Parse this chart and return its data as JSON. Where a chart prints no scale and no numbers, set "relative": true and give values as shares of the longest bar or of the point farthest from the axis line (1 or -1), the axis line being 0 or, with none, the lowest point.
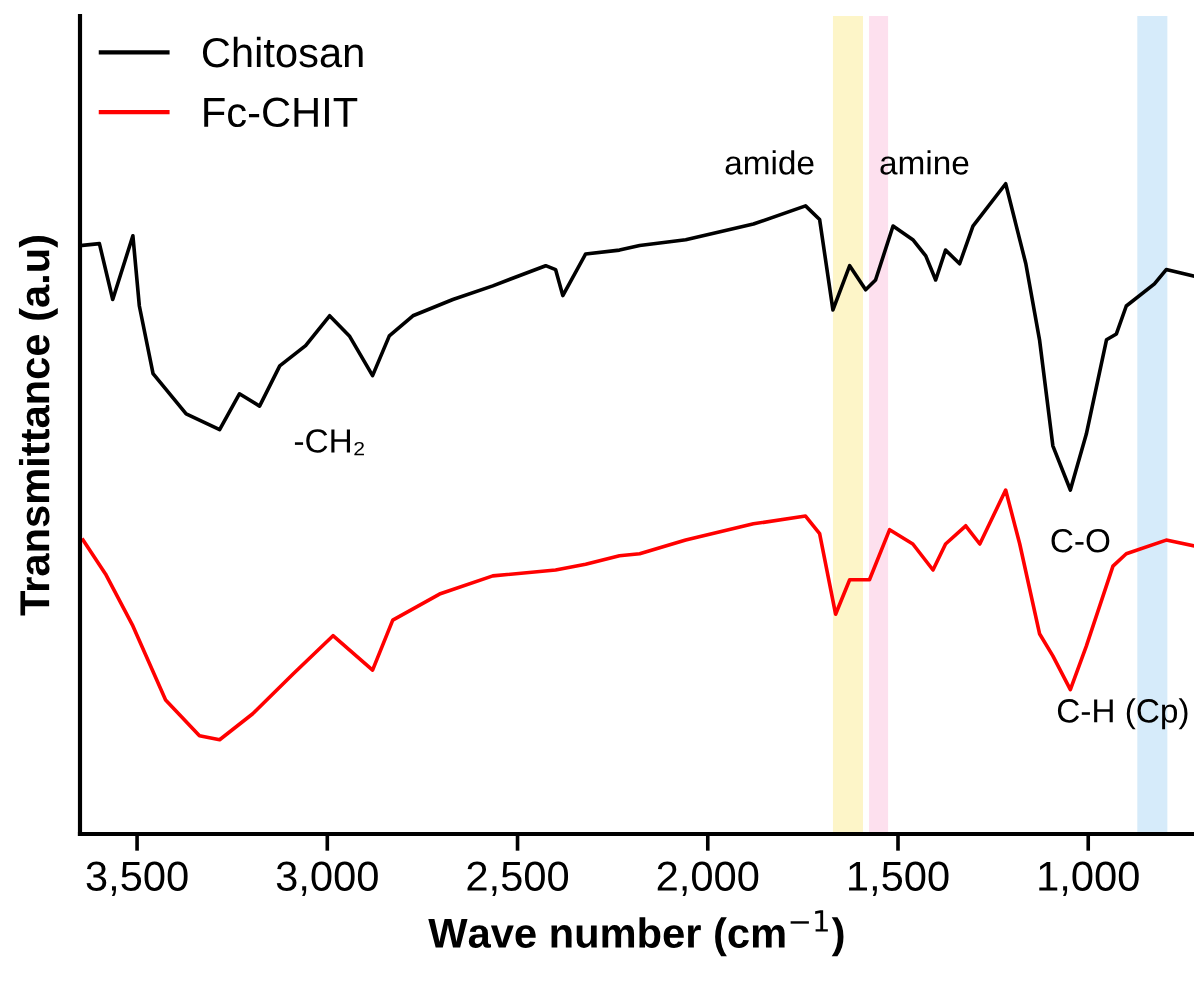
{
  "chart_data": {
    "type": "line",
    "relative": true,
    "xlabel": "Wave number (cm$^{−1}$)",
    "ylabel": "Transmittance (a.u)",
    "xlim": [
      3650,
      722
    ],
    "xticks": [
      {
        "value": 3500,
        "label": "3,500"
      },
      {
        "value": 3000,
        "label": "3,000"
      },
      {
        "value": 2500,
        "label": "2,500"
      },
      {
        "value": 2000,
        "label": "2,000"
      },
      {
        "value": 1500,
        "label": "1,500"
      },
      {
        "value": 1000,
        "label": "1,000"
      }
    ],
    "tick_labels": "x",
    "grid": false,
    "legend": "top left",
    "marker": "none",
    "line_style": "solid",
    "series": [
      {
        "name": "Chitosan",
        "color": "#000000",
        "x": [
          3649,
          3599,
          3564,
          3511,
          3494,
          3458,
          3371,
          3283,
          3231,
          3178,
          3125,
          3057,
          2994,
          2942,
          2881,
          2837,
          2775,
          2670,
          2565,
          2426,
          2400,
          2381,
          2321,
          2232,
          2179,
          2058,
          1880,
          1743,
          1706,
          1671,
          1627,
          1585,
          1559,
          1513,
          1461,
          1427,
          1401,
          1375,
          1338,
          1303,
          1217,
          1180,
          1164,
          1128,
          1093,
          1047,
          1005,
          952,
          926,
          900,
          826,
          795,
          722
        ],
        "values": [
          0.905,
          0.908,
          0.822,
          0.92,
          0.812,
          0.708,
          0.646,
          0.622,
          0.677,
          0.658,
          0.72,
          0.751,
          0.797,
          0.766,
          0.705,
          0.766,
          0.797,
          0.822,
          0.843,
          0.874,
          0.868,
          0.828,
          0.892,
          0.898,
          0.905,
          0.914,
          0.938,
          0.966,
          0.945,
          0.806,
          0.874,
          0.837,
          0.852,
          0.935,
          0.914,
          0.889,
          0.852,
          0.898,
          0.877,
          0.935,
          1.0,
          0.914,
          0.877,
          0.76,
          0.597,
          0.529,
          0.615,
          0.76,
          0.769,
          0.812,
          0.846,
          0.868,
          0.858
        ]
      },
      {
        "name": "Fc-CHIT",
        "color": "#ff0000",
        "x": [
          3642,
          3583,
          3511,
          3425,
          3336,
          3283,
          3196,
          3090,
          2985,
          2881,
          2828,
          2705,
          2565,
          2400,
          2321,
          2232,
          2179,
          2058,
          1880,
          1743,
          1706,
          1664,
          1627,
          1575,
          1522,
          1461,
          1408,
          1375,
          1322,
          1285,
          1217,
          1180,
          1128,
          1093,
          1047,
          1005,
          935,
          900,
          795,
          722
        ],
        "values": [
          0.452,
          0.4,
          0.32,
          0.206,
          0.151,
          0.145,
          0.185,
          0.246,
          0.305,
          0.252,
          0.329,
          0.369,
          0.397,
          0.406,
          0.415,
          0.428,
          0.431,
          0.452,
          0.477,
          0.489,
          0.462,
          0.338,
          0.391,
          0.391,
          0.468,
          0.446,
          0.406,
          0.446,
          0.474,
          0.446,
          0.529,
          0.446,
          0.308,
          0.274,
          0.222,
          0.289,
          0.412,
          0.431,
          0.452,
          0.443
        ]
      }
    ],
    "bands": [
      {
        "axis": "x",
        "from": 1671,
        "to": 1592,
        "color": "#fdf5c8"
      },
      {
        "axis": "x",
        "from": 1576,
        "to": 1526,
        "color": "#fde0ee"
      },
      {
        "axis": "x",
        "from": 871,
        "to": 792,
        "color": "#d6ebfa"
      }
    ],
    "annotations": [
      "amide",
      "amine",
      "-CH₂",
      "C-O",
      "C-H (Cp)"
    ]
  }
}
